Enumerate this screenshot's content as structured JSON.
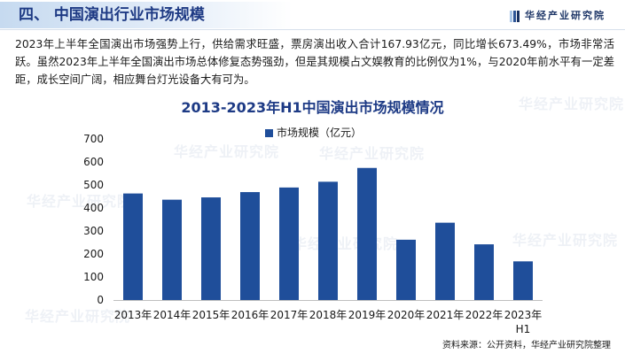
{
  "header": {
    "title": "四、 中国演出行业市场规模",
    "logo_text": "华经产业研究院",
    "logo_icon": "striped-square-logo-icon"
  },
  "body": {
    "paragraph": "2023年上半年全国演出市场强势上行，供给需求旺盛，票房演出收入合计167.93亿元，同比增长673.49%，市场非常活跃。虽然2023年上半年全国演出市场总体修复态势强劲，但是其规模占文娱教育的比例仅为1%，与2020年前水平有一定差距，成长空间广阔，相应舞台灯光设备大有可为。"
  },
  "watermark": "华经产业研究院",
  "chart_data": {
    "type": "bar",
    "title": "2013-2023年H1中国演出市场规模情况",
    "categories": [
      "2013年",
      "2014年",
      "2015年",
      "2016年",
      "2017年",
      "2018年",
      "2019年",
      "2020年",
      "2021年",
      "2022年",
      "2023年H1"
    ],
    "series": [
      {
        "name": "市场规模（亿元）",
        "values": [
          463,
          436,
          446,
          469,
          489,
          514,
          574,
          262,
          336,
          242,
          168
        ],
        "color": "#1f4e9a"
      }
    ],
    "xlabel": "",
    "ylabel": "",
    "ylim": [
      0,
      700
    ],
    "yticks": [
      0,
      100,
      200,
      300,
      400,
      500,
      600,
      700
    ],
    "grid": false,
    "legend_position": "top-center"
  },
  "source": "资料来源：公开资料，华经产业研究院整理",
  "colors": {
    "title_blue": "#1d3a85",
    "bar_blue": "#1f4e9a",
    "header_band": "#c6daf0",
    "axis": "#bfbfbf"
  }
}
